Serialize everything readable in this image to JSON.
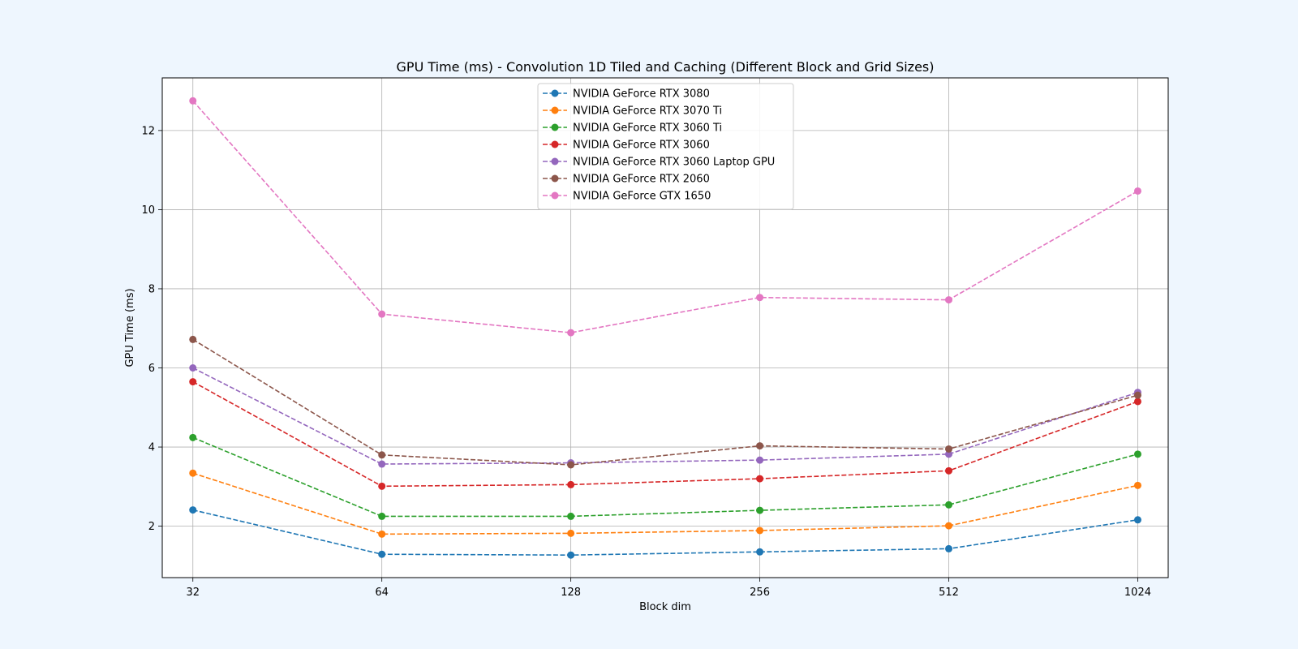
{
  "chart_data": {
    "type": "line",
    "title": "GPU Time (ms) - Convolution 1D Tiled and Caching (Different Block and Grid Sizes)",
    "xlabel": "Block dim",
    "ylabel": "GPU Time (ms)",
    "x_scale": "log2",
    "categories": [
      "32",
      "64",
      "128",
      "256",
      "512",
      "1024"
    ],
    "x": [
      32,
      64,
      128,
      256,
      512,
      1024
    ],
    "xlim": [
      28.6,
      1145
    ],
    "ylim": [
      0.7,
      13.33
    ],
    "yticks": [
      2,
      4,
      6,
      8,
      10,
      12
    ],
    "grid": true,
    "legend_position": "upper center",
    "line_style": "dashed",
    "marker": "circle",
    "series": [
      {
        "name": "NVIDIA GeForce RTX 3080",
        "color": "#1f77b4",
        "values": [
          2.41,
          1.29,
          1.27,
          1.35,
          1.43,
          2.16
        ]
      },
      {
        "name": "NVIDIA GeForce RTX 3070 Ti",
        "color": "#ff7f0e",
        "values": [
          3.34,
          1.8,
          1.82,
          1.89,
          2.01,
          3.03
        ]
      },
      {
        "name": "NVIDIA GeForce RTX 3060 Ti",
        "color": "#2ca02c",
        "values": [
          4.24,
          2.25,
          2.25,
          2.4,
          2.54,
          3.82
        ]
      },
      {
        "name": "NVIDIA GeForce RTX 3060",
        "color": "#d62728",
        "values": [
          5.65,
          3.01,
          3.05,
          3.2,
          3.4,
          5.15
        ]
      },
      {
        "name": "NVIDIA GeForce RTX 3060 Laptop GPU",
        "color": "#9467bd",
        "values": [
          6.0,
          3.57,
          3.6,
          3.67,
          3.82,
          5.38
        ]
      },
      {
        "name": "NVIDIA GeForce RTX 2060",
        "color": "#8c564b",
        "values": [
          6.72,
          3.8,
          3.55,
          4.03,
          3.95,
          5.31
        ]
      },
      {
        "name": "NVIDIA GeForce GTX 1650",
        "color": "#e377c2",
        "values": [
          12.75,
          7.36,
          6.89,
          7.78,
          7.72,
          10.47
        ]
      }
    ]
  }
}
